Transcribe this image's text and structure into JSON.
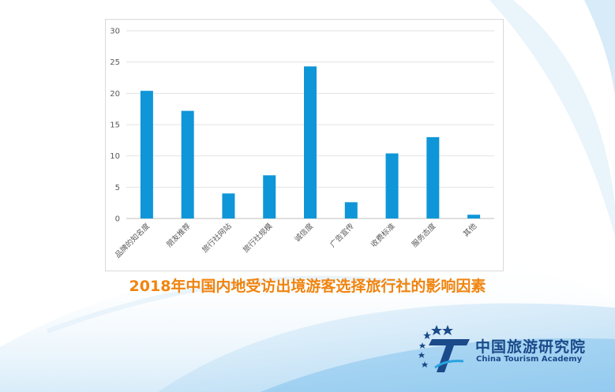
{
  "chart_data": {
    "type": "bar",
    "title": "2018年中国内地受访出境游客选择旅行社的影响因素",
    "categories": [
      "品牌的知名度",
      "朋友推荐",
      "旅行社网站",
      "旅行社规模",
      "诚信度",
      "广告宣传",
      "收费标准",
      "服务态度",
      "其他"
    ],
    "values": [
      20.4,
      17.2,
      4.0,
      6.9,
      24.3,
      2.6,
      10.4,
      13.0,
      0.6
    ],
    "yticks": [
      0,
      5,
      10,
      15,
      20,
      25,
      30
    ],
    "ylim": [
      0,
      30
    ],
    "xlabel": "",
    "ylabel": "",
    "grid": true,
    "bar_color": "#0e96d8"
  },
  "logo": {
    "name_cn": "中国旅游研究院",
    "name_en": "China Tourism Academy",
    "color": "#1a4a8a"
  }
}
